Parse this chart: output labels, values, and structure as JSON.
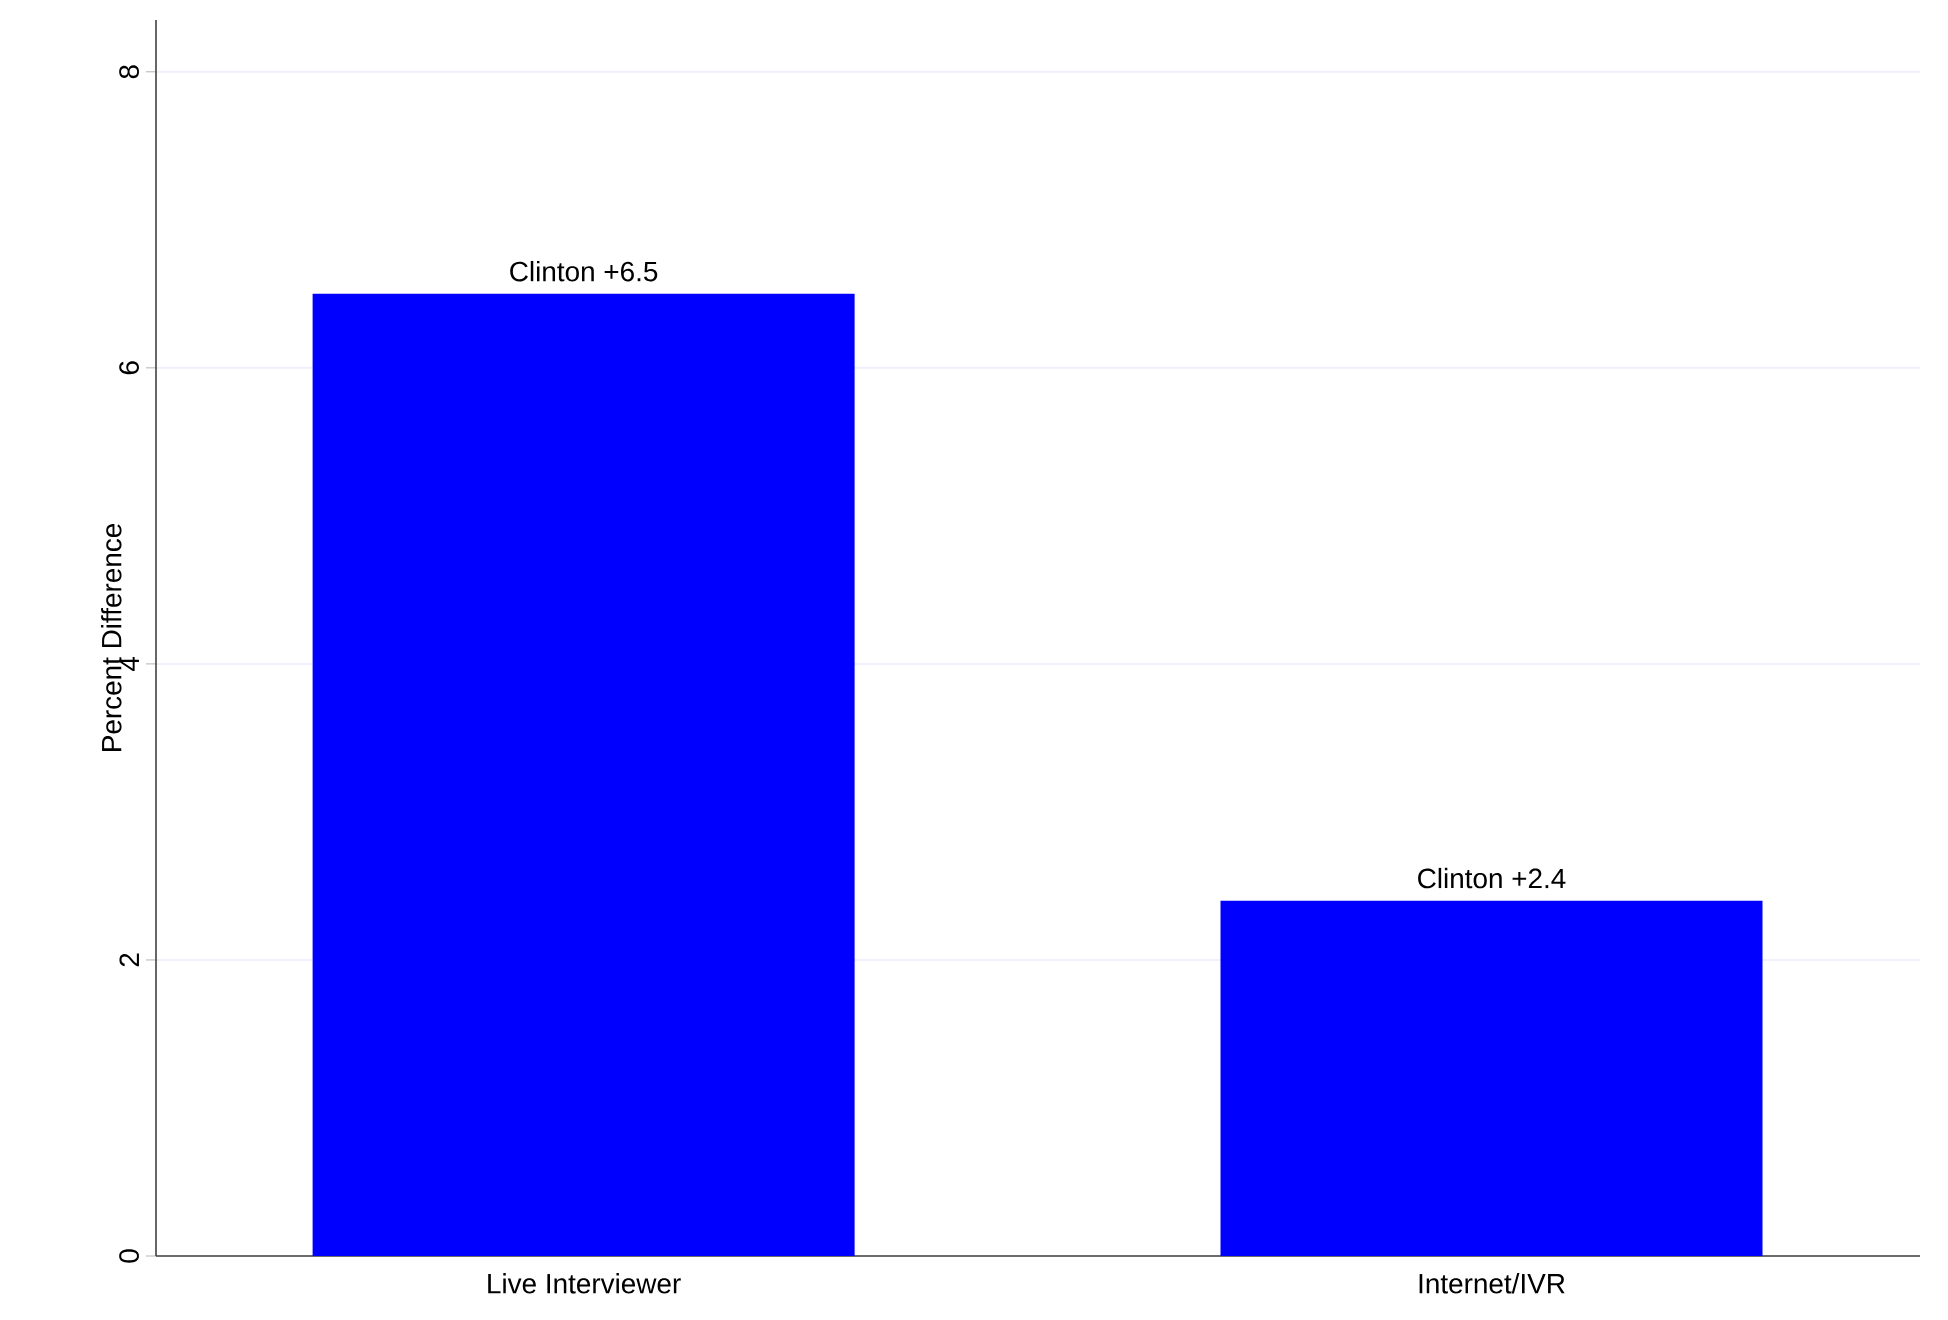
{
  "chart_data": {
    "type": "bar",
    "ylabel": "Percent Difference",
    "categories": [
      "Live Interviewer",
      "Internet/IVR"
    ],
    "values": [
      6.5,
      2.4
    ],
    "color": "#0000ff",
    "value_labels": [
      "Clinton +6.5",
      "Clinton +2.4"
    ],
    "ylim": [
      0,
      8.35
    ],
    "yticks": [
      0,
      2,
      4,
      6,
      8
    ],
    "grid": "y"
  }
}
